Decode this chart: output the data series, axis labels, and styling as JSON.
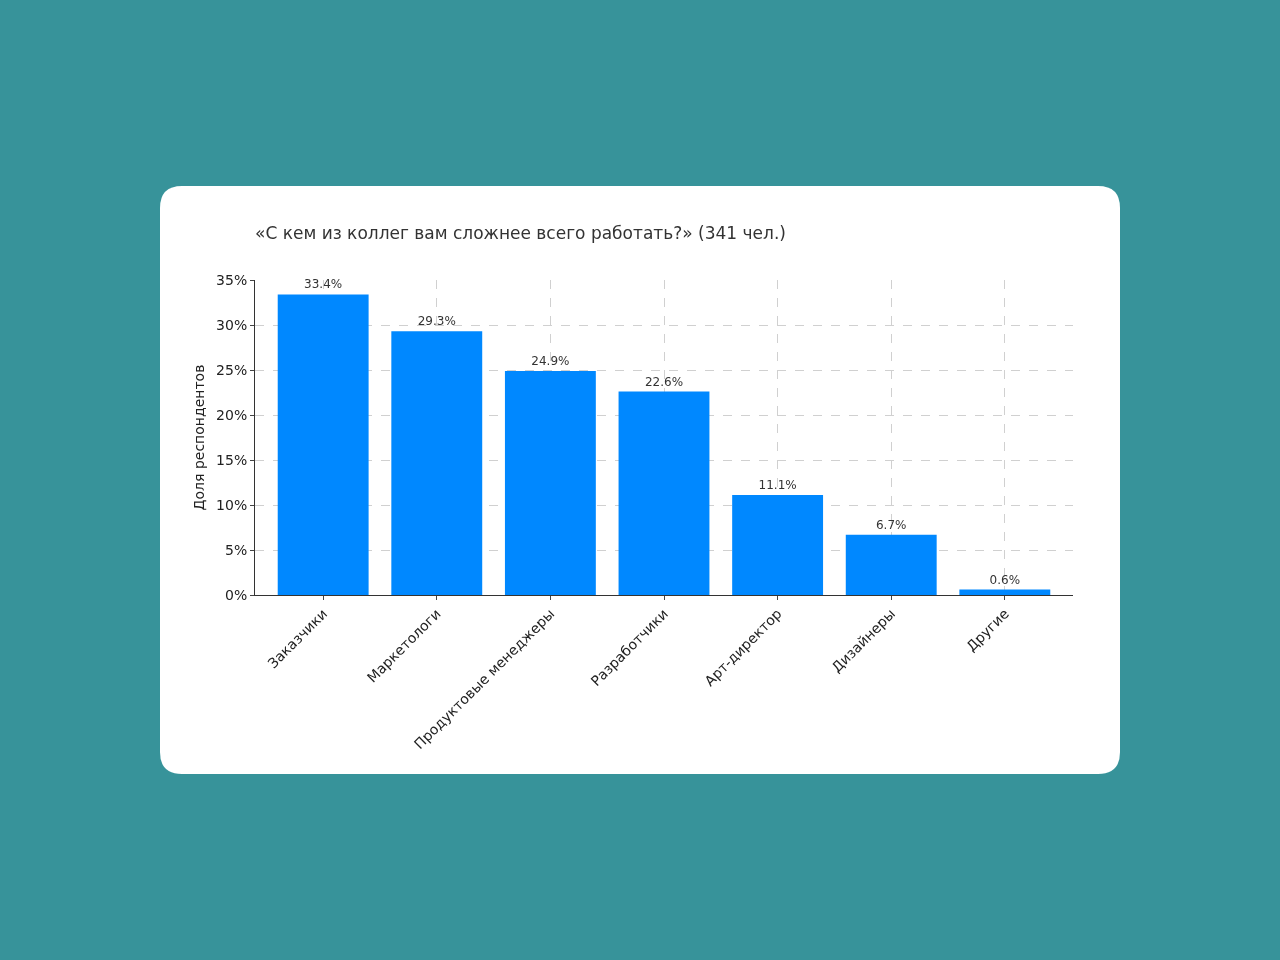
{
  "chart_data": {
    "type": "bar",
    "title": "«С кем из коллег вам сложнее всего работать?» (341 чел.)",
    "ylabel": "Доля респондентов",
    "categories": [
      "Заказчики",
      "Маркетологи",
      "Продуктовые менеджеры",
      "Разработчики",
      "Арт-директор",
      "Дизайнеры",
      "Другие"
    ],
    "values": [
      33.4,
      29.3,
      24.9,
      22.6,
      11.1,
      6.7,
      0.6
    ],
    "value_labels": [
      "33.4%",
      "29.3%",
      "24.9%",
      "22.6%",
      "11.1%",
      "6.7%",
      "0.6%"
    ],
    "color": "#0088ff",
    "ylim": [
      0,
      35
    ],
    "yticks": [
      {
        "value": 0,
        "label": "0%"
      },
      {
        "value": 5,
        "label": "5%"
      },
      {
        "value": 10,
        "label": "10%"
      },
      {
        "value": 15,
        "label": "15%"
      },
      {
        "value": 20,
        "label": "20%"
      },
      {
        "value": 25,
        "label": "25%"
      },
      {
        "value": 30,
        "label": "30%"
      },
      {
        "value": 35,
        "label": "35%"
      }
    ],
    "grid": true
  }
}
